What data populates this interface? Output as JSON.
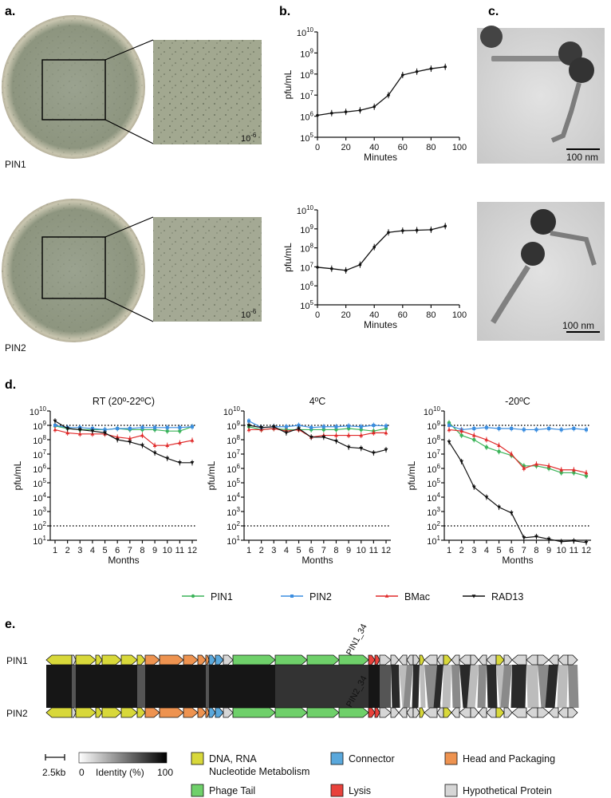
{
  "panels": {
    "a": "a.",
    "b": "b.",
    "c": "c.",
    "d": "d.",
    "e": "e."
  },
  "panel_a": {
    "plates": [
      {
        "label": "PIN1",
        "dilution_base": "10",
        "dilution_exp": "-6"
      },
      {
        "label": "PIN2",
        "dilution_base": "10",
        "dilution_exp": "-6"
      }
    ]
  },
  "panel_c": {
    "scale_labels": [
      "100 nm",
      "100 nm"
    ]
  },
  "colors": {
    "PIN1": "#3cb45a",
    "PIN2": "#3c8ee0",
    "BMac": "#e02a2a",
    "RAD13": "#111111",
    "dna": "#d8d83a",
    "connector": "#5aa8dc",
    "head": "#ee9350",
    "tail": "#6fd06a",
    "lysis": "#e8423c",
    "hypo": "#d6d6d6"
  },
  "chart_data": [
    {
      "type": "line",
      "panel": "b-top",
      "xlabel": "Minutes",
      "ylabel": "pfu/mL",
      "log_y": true,
      "xlim": [
        0,
        100
      ],
      "ylim_exp": [
        5,
        10
      ],
      "xticks": [
        "0",
        "20",
        "40",
        "60",
        "80",
        "100"
      ],
      "series": [
        {
          "x": [
            0,
            10,
            20,
            30,
            40,
            50,
            60,
            70,
            80,
            90
          ],
          "y": [
            1100000.0,
            1400000.0,
            1600000.0,
            1900000.0,
            2800000.0,
            10000000.0,
            90000000.0,
            130000000.0,
            180000000.0,
            220000000.0
          ]
        }
      ]
    },
    {
      "type": "line",
      "panel": "b-bottom",
      "xlabel": "Minutes",
      "ylabel": "pfu/mL",
      "log_y": true,
      "xlim": [
        0,
        100
      ],
      "ylim_exp": [
        5,
        10
      ],
      "xticks": [
        "0",
        "20",
        "40",
        "60",
        "80",
        "100"
      ],
      "series": [
        {
          "x": [
            0,
            10,
            20,
            30,
            40,
            50,
            60,
            70,
            80,
            90
          ],
          "y": [
            9500000.0,
            8000000.0,
            6500000.0,
            13000000.0,
            110000000.0,
            650000000.0,
            800000000.0,
            850000000.0,
            900000000.0,
            1400000000.0
          ]
        }
      ]
    },
    {
      "type": "line",
      "panel": "d-RT",
      "title": "RT (20º-22ºC)",
      "xlabel": "Months",
      "ylabel": "pfu/mL",
      "log_y": true,
      "ylim_exp": [
        1,
        10
      ],
      "xticks": [
        "1",
        "2",
        "3",
        "4",
        "5",
        "6",
        "7",
        "8",
        "9",
        "10",
        "11",
        "12"
      ],
      "reference_lines": [
        1000000000.0,
        100.0
      ],
      "series": [
        {
          "name": "PIN1",
          "values": [
            900000000.0,
            600000000.0,
            500000000.0,
            500000000.0,
            500000000.0,
            600000000.0,
            500000000.0,
            500000000.0,
            500000000.0,
            400000000.0,
            400000000.0,
            800000000.0
          ]
        },
        {
          "name": "PIN2",
          "values": [
            1000000000.0,
            700000000.0,
            700000000.0,
            600000000.0,
            500000000.0,
            600000000.0,
            600000000.0,
            700000000.0,
            700000000.0,
            700000000.0,
            700000000.0,
            800000000.0
          ]
        },
        {
          "name": "BMac",
          "values": [
            500000000.0,
            300000000.0,
            250000000.0,
            250000000.0,
            250000000.0,
            150000000.0,
            120000000.0,
            200000000.0,
            40000000.0,
            40000000.0,
            60000000.0,
            90000000.0
          ]
        },
        {
          "name": "RAD13",
          "values": [
            2000000000.0,
            600000000.0,
            500000000.0,
            400000000.0,
            300000000.0,
            100000000.0,
            70000000.0,
            40000000.0,
            12000000.0,
            5000000.0,
            2500000.0,
            2500000.0
          ]
        }
      ]
    },
    {
      "type": "line",
      "panel": "d-4C",
      "title": "4ºC",
      "xlabel": "Months",
      "ylabel": "pfu/mL",
      "log_y": true,
      "ylim_exp": [
        1,
        10
      ],
      "xticks": [
        "1",
        "2",
        "3",
        "4",
        "5",
        "6",
        "7",
        "8",
        "9",
        "10",
        "11",
        "12"
      ],
      "reference_lines": [
        1000000000.0,
        100.0
      ],
      "series": [
        {
          "name": "PIN1",
          "values": [
            800000000.0,
            500000000.0,
            600000000.0,
            500000000.0,
            500000000.0,
            500000000.0,
            500000000.0,
            500000000.0,
            600000000.0,
            500000000.0,
            400000000.0,
            600000000.0
          ]
        },
        {
          "name": "PIN2",
          "values": [
            2000000000.0,
            700000000.0,
            800000000.0,
            800000000.0,
            1000000000.0,
            700000000.0,
            800000000.0,
            800000000.0,
            900000000.0,
            800000000.0,
            1000000000.0,
            900000000.0
          ]
        },
        {
          "name": "BMac",
          "values": [
            500000000.0,
            500000000.0,
            600000000.0,
            400000000.0,
            500000000.0,
            150000000.0,
            200000000.0,
            200000000.0,
            200000000.0,
            200000000.0,
            300000000.0,
            300000000.0
          ]
        },
        {
          "name": "RAD13",
          "values": [
            1000000000.0,
            700000000.0,
            800000000.0,
            300000000.0,
            600000000.0,
            150000000.0,
            150000000.0,
            80000000.0,
            30000000.0,
            25000000.0,
            12000000.0,
            20000000.0
          ]
        }
      ]
    },
    {
      "type": "line",
      "panel": "d-minus20C",
      "title": "-20ºC",
      "xlabel": "Months",
      "ylabel": "pfu/mL",
      "log_y": true,
      "ylim_exp": [
        1,
        10
      ],
      "xticks": [
        "1",
        "2",
        "3",
        "4",
        "5",
        "6",
        "7",
        "8",
        "9",
        "10",
        "11",
        "12"
      ],
      "reference_lines": [
        1000000000.0,
        100.0
      ],
      "series": [
        {
          "name": "PIN1",
          "values": [
            1500000000.0,
            200000000.0,
            100000000.0,
            30000000.0,
            15000000.0,
            8000000.0,
            1500000.0,
            1500000.0,
            1000000.0,
            500000.0,
            500000.0,
            300000.0
          ]
        },
        {
          "name": "PIN2",
          "values": [
            1000000000.0,
            500000000.0,
            600000000.0,
            700000000.0,
            600000000.0,
            600000000.0,
            500000000.0,
            500000000.0,
            600000000.0,
            500000000.0,
            600000000.0,
            500000000.0
          ]
        },
        {
          "name": "BMac",
          "values": [
            500000000.0,
            400000000.0,
            200000000.0,
            100000000.0,
            40000000.0,
            10000000.0,
            1000000.0,
            2000000.0,
            1500000.0,
            800000.0,
            800000.0,
            500000.0
          ]
        },
        {
          "name": "RAD13",
          "values": [
            70000000.0,
            3000000.0,
            50000.0,
            10000.0,
            2000.0,
            800.0,
            15.0,
            18.0,
            12.0,
            8,
            9,
            7
          ]
        }
      ]
    }
  ],
  "legend_d": [
    "PIN1",
    "PIN2",
    "BMac",
    "RAD13"
  ],
  "panel_e": {
    "track_labels": [
      "PIN1",
      "PIN2"
    ],
    "gene_labels": [
      "PIN1_34",
      "PIN2_34"
    ],
    "scale_label": "2.5kb",
    "identity_label": "Identity (%)",
    "identity_min": "0",
    "identity_max": "100",
    "categories": [
      {
        "key": "dna",
        "label": "DNA, RNA Nucleotide Metabolism"
      },
      {
        "key": "connector",
        "label": "Connector"
      },
      {
        "key": "head",
        "label": "Head and Packaging"
      },
      {
        "key": "tail",
        "label": "Phage Tail"
      },
      {
        "key": "lysis",
        "label": "Lysis"
      },
      {
        "key": "hypo",
        "label": "Hypothetical Protein"
      }
    ],
    "genes": [
      [
        "dna",
        58,
        90,
        -1
      ],
      [
        "hypo",
        90,
        95,
        1
      ],
      [
        "dna",
        95,
        120,
        1
      ],
      [
        "dna",
        120,
        128,
        1
      ],
      [
        "dna",
        128,
        152,
        1
      ],
      [
        "dna",
        152,
        172,
        1
      ],
      [
        "dna",
        172,
        182,
        1
      ],
      [
        "head",
        182,
        200,
        1
      ],
      [
        "head",
        200,
        230,
        1
      ],
      [
        "head",
        230,
        248,
        1
      ],
      [
        "head",
        248,
        258,
        1
      ],
      [
        "head",
        258,
        262,
        1
      ],
      [
        "connector",
        262,
        270,
        1
      ],
      [
        "connector",
        270,
        280,
        1
      ],
      [
        "hypo",
        280,
        292,
        1
      ],
      [
        "tail",
        292,
        345,
        1
      ],
      [
        "tail",
        345,
        385,
        1
      ],
      [
        "tail",
        385,
        425,
        1
      ],
      [
        "tail",
        425,
        462,
        1
      ],
      [
        "lysis",
        462,
        470,
        1
      ],
      [
        "lysis",
        470,
        476,
        1
      ],
      [
        "hypo",
        476,
        490,
        1
      ],
      [
        "hypo",
        490,
        500,
        1
      ],
      [
        "hypo",
        500,
        510,
        -1
      ],
      [
        "hypo",
        510,
        518,
        -1
      ],
      [
        "hypo",
        518,
        526,
        1
      ],
      [
        "dna",
        526,
        532,
        1
      ],
      [
        "hypo",
        532,
        548,
        -1
      ],
      [
        "hypo",
        548,
        556,
        -1
      ],
      [
        "dna",
        556,
        566,
        1
      ],
      [
        "hypo",
        566,
        576,
        -1
      ],
      [
        "hypo",
        576,
        590,
        -1
      ],
      [
        "hypo",
        590,
        600,
        1
      ],
      [
        "hypo",
        600,
        610,
        -1
      ],
      [
        "hypo",
        610,
        622,
        -1
      ],
      [
        "dna",
        622,
        632,
        1
      ],
      [
        "hypo",
        632,
        642,
        1
      ],
      [
        "hypo",
        642,
        660,
        -1
      ],
      [
        "hypo",
        660,
        674,
        -1
      ],
      [
        "hypo",
        674,
        688,
        1
      ],
      [
        "hypo",
        688,
        700,
        -1
      ],
      [
        "hypo",
        700,
        712,
        -1
      ],
      [
        "hypo",
        712,
        724,
        1
      ]
    ]
  }
}
